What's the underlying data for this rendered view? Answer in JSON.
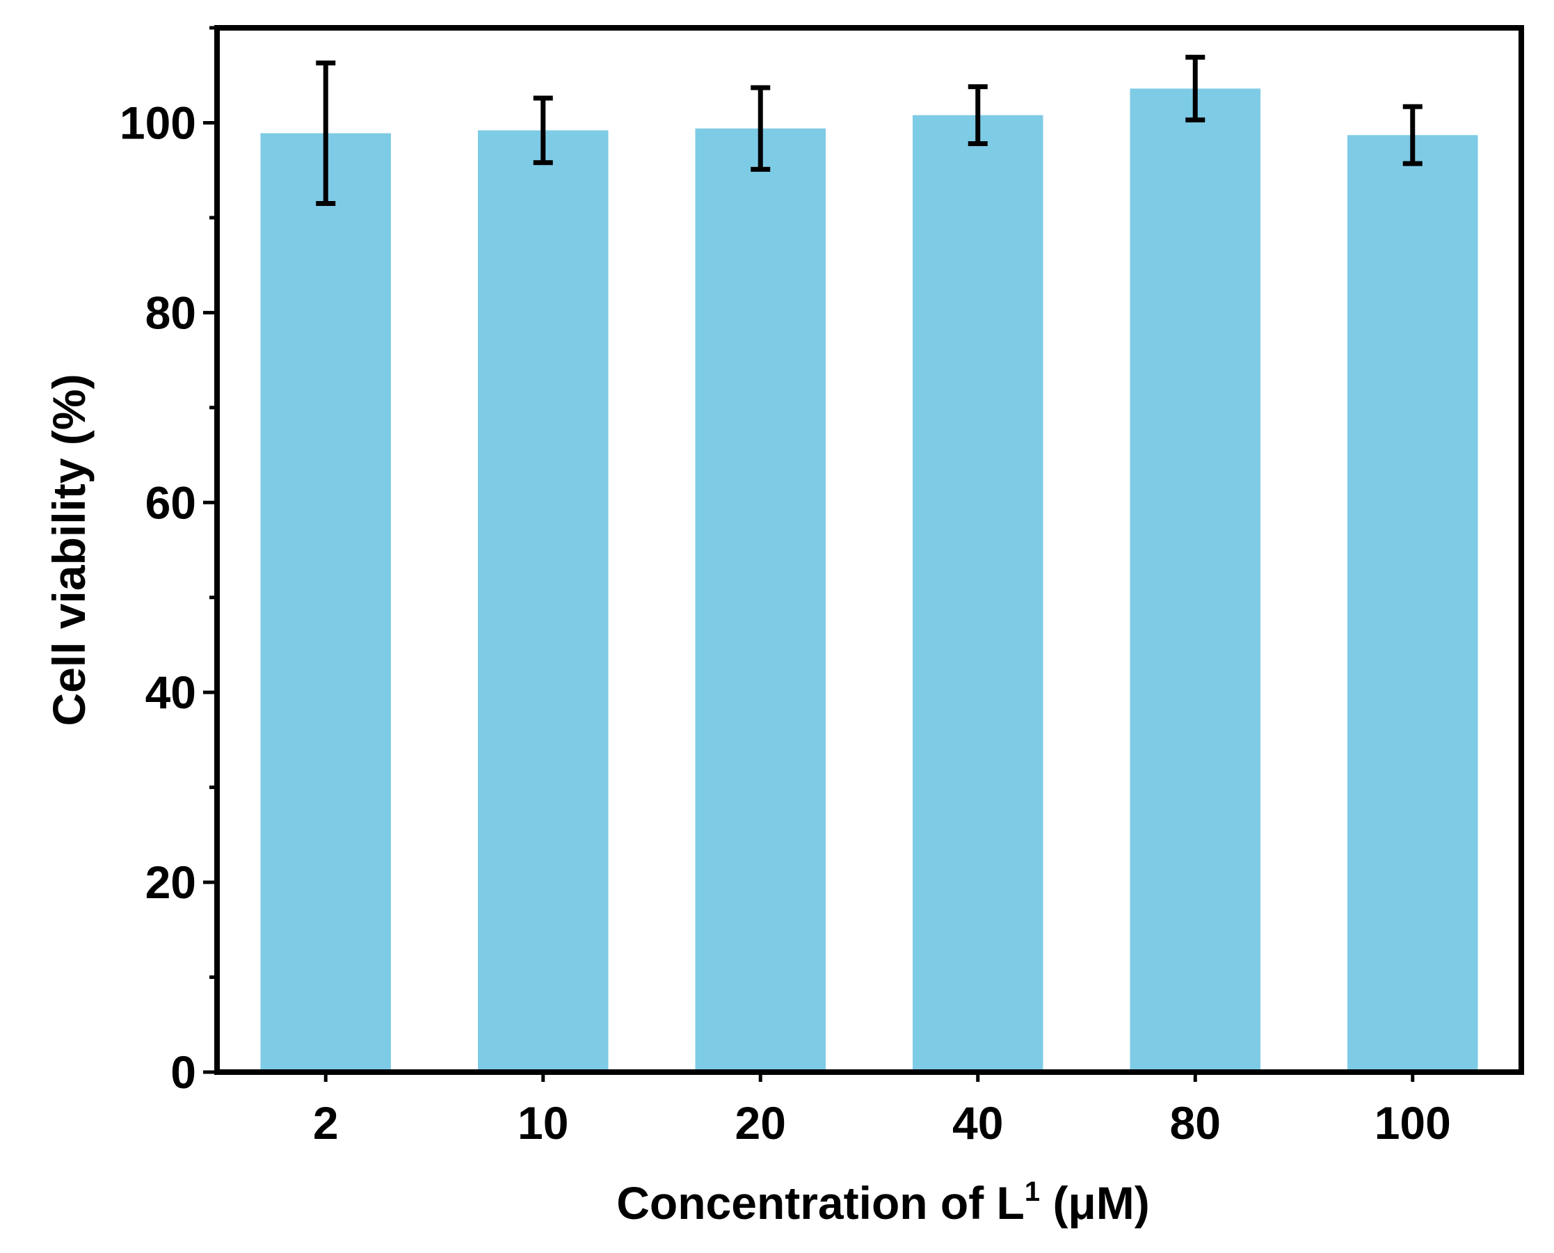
{
  "chart_data": {
    "type": "bar",
    "title": "",
    "categories": [
      "2",
      "10",
      "20",
      "40",
      "80",
      "100"
    ],
    "values": [
      98.9,
      99.2,
      99.4,
      100.8,
      103.6,
      98.7
    ],
    "errors": [
      7.4,
      3.4,
      4.3,
      3.0,
      3.3,
      3.0
    ],
    "xlabel_main": "Concentration of L",
    "xlabel_sup": "1",
    "xlabel_unit": " (μM)",
    "ylabel": "Cell viability (%)",
    "ylim": [
      0,
      110
    ],
    "yticks": [
      0,
      20,
      40,
      60,
      80,
      100
    ],
    "yticks_minor": [
      10,
      30,
      50,
      70,
      90,
      110
    ],
    "bar_color": "#7ecbe6",
    "axis_color": "#000000"
  }
}
